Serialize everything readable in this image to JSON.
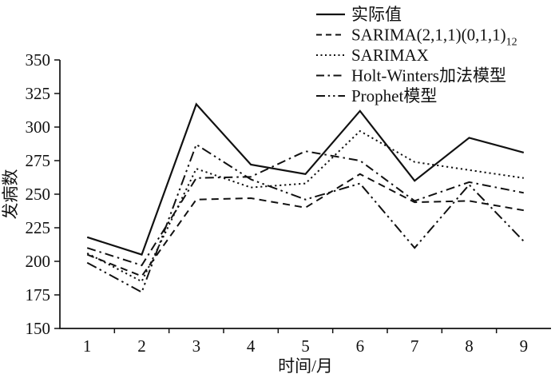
{
  "chart_data": {
    "type": "line",
    "title": "",
    "xlabel": "时间/月",
    "ylabel": "发病数",
    "x": [
      1,
      2,
      3,
      4,
      5,
      6,
      7,
      8,
      9
    ],
    "x_tick_labels": [
      "1",
      "2",
      "3",
      "4",
      "5",
      "6",
      "7",
      "8",
      "9"
    ],
    "ylim": [
      150,
      350
    ],
    "yticks": [
      150,
      175,
      200,
      225,
      250,
      275,
      300,
      325,
      350
    ],
    "grid": false,
    "legend_position": "top-right",
    "line_color": "#111111",
    "series": [
      {
        "key": "actual",
        "name": "实际值",
        "name_sub": "",
        "dash": "solid",
        "values": [
          218,
          205,
          317,
          272,
          265,
          312,
          260,
          292,
          281
        ]
      },
      {
        "key": "sarima",
        "name": "SARIMA(2,1,1)(0,1,1)",
        "name_sub": "12",
        "dash": "dashed",
        "values": [
          205,
          189,
          246,
          247,
          240,
          265,
          244,
          245,
          238
        ]
      },
      {
        "key": "sarimax",
        "name": "SARIMAX",
        "name_sub": "",
        "dash": "dotted",
        "values": [
          206,
          185,
          269,
          255,
          258,
          297,
          274,
          268,
          262
        ]
      },
      {
        "key": "holt-winters",
        "name": "Holt-Winters加法模型",
        "name_sub": "",
        "dash": "dashdot",
        "values": [
          210,
          197,
          262,
          263,
          282,
          275,
          245,
          259,
          251
        ]
      },
      {
        "key": "prophet",
        "name": "Prophet模型",
        "name_sub": "",
        "dash": "dashdotdot",
        "values": [
          199,
          177,
          287,
          261,
          246,
          258,
          210,
          257,
          215
        ]
      }
    ]
  }
}
